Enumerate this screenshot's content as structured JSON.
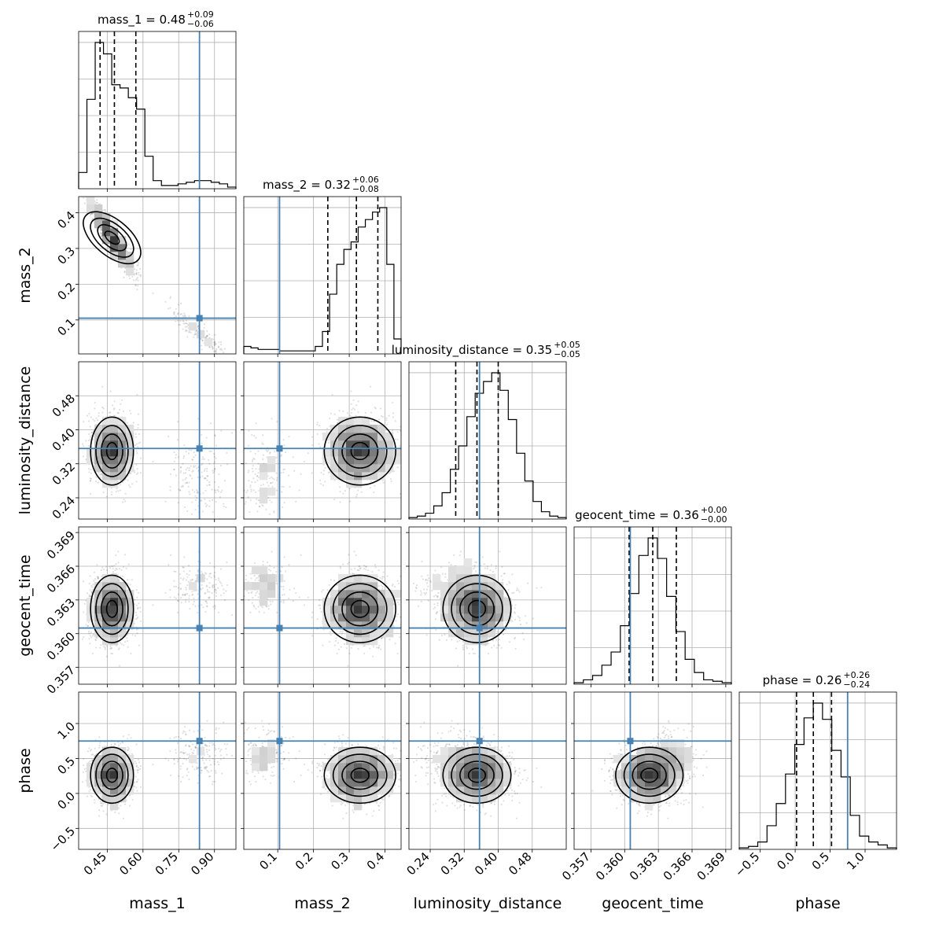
{
  "chart_data": {
    "type": "corner",
    "parameters": [
      "mass_1",
      "mass_2",
      "luminosity_distance",
      "geocent_time",
      "phase"
    ],
    "truth": {
      "mass_1": 0.837,
      "mass_2": 0.105,
      "luminosity_distance": 0.356,
      "geocent_time": 0.3605,
      "phase": 0.75
    },
    "truth_color": "#4682b4",
    "ranges": {
      "mass_1": [
        0.33,
        0.99
      ],
      "mass_2": [
        0.005,
        0.445
      ],
      "luminosity_distance": [
        0.19,
        0.56
      ],
      "geocent_time": [
        0.3555,
        0.3695
      ],
      "phase": [
        -0.8,
        1.45
      ]
    },
    "titles": [
      {
        "param": "mass_1",
        "label": "mass_1 = 0.48",
        "plus": "+0.09",
        "minus": "−0.06"
      },
      {
        "param": "mass_2",
        "label": "mass_2 = 0.32",
        "plus": "+0.06",
        "minus": "−0.08"
      },
      {
        "param": "luminosity_distance",
        "label": "luminosity_distance = 0.35",
        "plus": "+0.05",
        "minus": "−0.05"
      },
      {
        "param": "geocent_time",
        "label": "geocent_time = 0.36",
        "plus": "+0.00",
        "minus": "−0.00"
      },
      {
        "param": "phase",
        "label": "phase = 0.26",
        "plus": "+0.26",
        "minus": "−0.24"
      }
    ],
    "ticks": {
      "mass_1": {
        "values": [
          0.45,
          0.6,
          0.75,
          0.9
        ],
        "labels": [
          "0.45",
          "0.60",
          "0.75",
          "0.90"
        ]
      },
      "mass_2": {
        "values": [
          0.1,
          0.2,
          0.3,
          0.4
        ],
        "labels": [
          "0.1",
          "0.2",
          "0.3",
          "0.4"
        ]
      },
      "luminosity_distance": {
        "values": [
          0.24,
          0.32,
          0.4,
          0.48
        ],
        "labels": [
          "0.24",
          "0.32",
          "0.40",
          "0.48"
        ]
      },
      "geocent_time": {
        "values": [
          0.357,
          0.36,
          0.363,
          0.366,
          0.369
        ],
        "labels": [
          "0.357",
          "0.360",
          "0.363",
          "0.366",
          "0.369"
        ]
      },
      "phase": {
        "values": [
          -0.5,
          0.0,
          0.5,
          1.0
        ],
        "labels": [
          "−0.5",
          "0.0",
          "0.5",
          "1.0"
        ]
      }
    },
    "quantiles": {
      "mass_1": [
        0.42,
        0.48,
        0.57
      ],
      "mass_2": [
        0.24,
        0.32,
        0.38
      ],
      "luminosity_distance": [
        0.3,
        0.35,
        0.4
      ],
      "geocent_time": [
        0.3604,
        0.3625,
        0.3646
      ],
      "phase": [
        0.02,
        0.26,
        0.52
      ]
    },
    "histograms": {
      "mass_1": [
        0.1,
        0.55,
        0.9,
        0.83,
        0.64,
        0.62,
        0.56,
        0.49,
        0.2,
        0.05,
        0.02,
        0.02,
        0.03,
        0.04,
        0.05,
        0.05,
        0.04,
        0.03,
        0.01
      ],
      "mass_2": [
        0.05,
        0.04,
        0.03,
        0.03,
        0.03,
        0.02,
        0.02,
        0.02,
        0.02,
        0.02,
        0.05,
        0.15,
        0.4,
        0.6,
        0.7,
        0.75,
        0.85,
        0.9,
        0.95,
        0.98,
        0.6,
        0.1
      ],
      "luminosity_distance": [
        0.01,
        0.02,
        0.04,
        0.09,
        0.18,
        0.34,
        0.5,
        0.7,
        0.86,
        0.94,
        1.0,
        0.88,
        0.68,
        0.45,
        0.26,
        0.12,
        0.05,
        0.02,
        0.01
      ],
      "geocent_time": [
        0.01,
        0.03,
        0.06,
        0.13,
        0.22,
        0.4,
        0.62,
        0.88,
        1.0,
        0.86,
        0.6,
        0.36,
        0.17,
        0.08,
        0.03,
        0.02,
        0.01
      ],
      "phase": [
        0.01,
        0.02,
        0.05,
        0.16,
        0.31,
        0.51,
        0.71,
        0.89,
        0.99,
        0.88,
        0.67,
        0.49,
        0.23,
        0.09,
        0.05,
        0.03,
        0.01
      ]
    },
    "clusters": {
      "mass_1": [
        {
          "mean": 0.47,
          "sd": 0.045,
          "weight": 0.85
        },
        {
          "mean": 0.84,
          "sd": 0.06,
          "weight": 0.15
        }
      ],
      "mass_2": [
        {
          "mean": 0.33,
          "sd": 0.05,
          "weight": 0.85
        },
        {
          "mean": 0.06,
          "sd": 0.035,
          "weight": 0.15
        }
      ],
      "luminosity_distance": [
        {
          "mean": 0.35,
          "sd": 0.04,
          "weight": 0.85
        },
        {
          "mean": 0.3,
          "sd": 0.05,
          "weight": 0.15
        }
      ],
      "geocent_time": [
        {
          "mean": 0.3622,
          "sd": 0.0015,
          "weight": 0.85
        },
        {
          "mean": 0.3643,
          "sd": 0.0012,
          "weight": 0.15
        }
      ],
      "phase": [
        {
          "mean": 0.26,
          "sd": 0.2,
          "weight": 0.85
        },
        {
          "mean": 0.55,
          "sd": 0.18,
          "weight": 0.15
        }
      ]
    },
    "grid": true
  }
}
